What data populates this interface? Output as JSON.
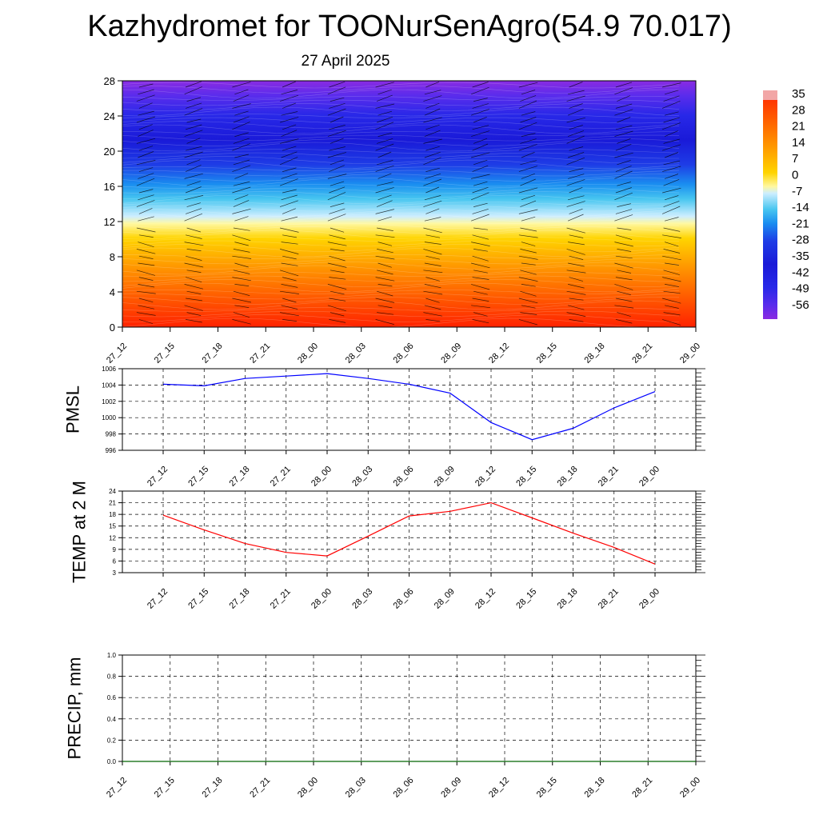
{
  "header": {
    "title": "Kazhydromet for TOONurSenAgro(54.9 70.017)",
    "date": "27 April 2025"
  },
  "chart_data": [
    {
      "type": "heatmap",
      "title": "",
      "xlabel": "",
      "ylabel": "",
      "x_tick_labels": [
        "27_12",
        "27_15",
        "27_18",
        "27_21",
        "28_00",
        "28_03",
        "28_06",
        "28_09",
        "28_12",
        "28_15",
        "28_18",
        "28_21",
        "29_00"
      ],
      "y_ticks": [
        0,
        4,
        8,
        12,
        16,
        20,
        24,
        28
      ],
      "ylim": [
        0,
        28
      ],
      "colorbar_labels": [
        "35",
        "28",
        "21",
        "14",
        "7",
        "0",
        "-7",
        "-14",
        "-21",
        "-28",
        "-35",
        "-42",
        "-49",
        "-56"
      ],
      "colorbar_range": [
        -63,
        42
      ],
      "colors": {
        "cold_top": "#8a2be2",
        "cold": "#1e1ee0",
        "mid": "#48c6f0",
        "freezing": "#fff8a0",
        "warm": "#ffb000",
        "hot": "#ff2200"
      },
      "field_description_layers_temperature": {
        "levels": [
          0,
          4,
          8,
          10,
          12,
          14,
          16,
          18,
          20,
          22,
          24,
          26,
          28
        ],
        "values_by_time": [
          [
            20,
            12,
            4,
            -2,
            -12,
            -24,
            -36,
            -46,
            -54,
            -58,
            -56,
            -52,
            -48
          ],
          [
            19,
            11,
            4,
            -3,
            -12,
            -25,
            -37,
            -47,
            -55,
            -59,
            -57,
            -52,
            -48
          ],
          [
            16,
            10,
            3,
            -3,
            -13,
            -25,
            -37,
            -47,
            -55,
            -58,
            -56,
            -51,
            -47
          ],
          [
            15,
            9,
            3,
            -3,
            -13,
            -25,
            -37,
            -47,
            -55,
            -58,
            -56,
            -51,
            -47
          ],
          [
            14,
            9,
            3,
            -3,
            -13,
            -25,
            -37,
            -47,
            -55,
            -58,
            -56,
            -51,
            -47
          ],
          [
            17,
            11,
            4,
            -2,
            -12,
            -25,
            -37,
            -47,
            -55,
            -58,
            -56,
            -51,
            -47
          ],
          [
            20,
            13,
            5,
            -2,
            -12,
            -24,
            -36,
            -47,
            -55,
            -58,
            -56,
            -51,
            -47
          ],
          [
            22,
            14,
            5,
            -1,
            -12,
            -24,
            -36,
            -47,
            -55,
            -58,
            -55,
            -51,
            -47
          ],
          [
            25,
            16,
            6,
            -1,
            -12,
            -24,
            -36,
            -47,
            -55,
            -58,
            -55,
            -51,
            -47
          ],
          [
            24,
            15,
            6,
            -1,
            -12,
            -24,
            -36,
            -47,
            -55,
            -58,
            -55,
            -51,
            -47
          ],
          [
            18,
            12,
            5,
            -1,
            -12,
            -24,
            -36,
            -47,
            -55,
            -58,
            -55,
            -51,
            -47
          ],
          [
            14,
            10,
            4,
            -1,
            -12,
            -24,
            -36,
            -47,
            -55,
            -58,
            -55,
            -51,
            -47
          ],
          [
            8,
            6,
            3,
            -1,
            -12,
            -24,
            -36,
            -47,
            -55,
            -58,
            -55,
            -51,
            -47
          ]
        ]
      }
    },
    {
      "type": "line",
      "ylabel": "PMSL",
      "categories": [
        "27_12",
        "27_15",
        "27_18",
        "27_21",
        "28_00",
        "28_03",
        "28_06",
        "28_09",
        "28_12",
        "28_15",
        "28_18",
        "28_21",
        "29_00"
      ],
      "ylim": [
        996,
        1006
      ],
      "y_ticks": [
        996,
        998,
        1000,
        1002,
        1004,
        1006
      ],
      "series": [
        {
          "color": "#0000ff",
          "values": [
            1004.1,
            1003.9,
            1004.8,
            1005.1,
            1005.4,
            1004.8,
            1004.1,
            1003.0,
            999.4,
            997.3,
            998.7,
            1001.2,
            1003.2
          ]
        }
      ]
    },
    {
      "type": "line",
      "ylabel": "TEMP at 2 M",
      "categories": [
        "27_12",
        "27_15",
        "27_18",
        "27_21",
        "28_00",
        "28_03",
        "28_06",
        "28_09",
        "28_12",
        "28_15",
        "28_18",
        "28_21",
        "29_00"
      ],
      "ylim": [
        3,
        24
      ],
      "y_ticks": [
        3,
        6,
        9,
        12,
        15,
        18,
        21,
        24
      ],
      "series": [
        {
          "color": "#ff0000",
          "values": [
            17.8,
            14.0,
            10.5,
            8.2,
            7.3,
            12.4,
            17.6,
            18.8,
            21.0,
            17.1,
            13.2,
            9.5,
            5.2
          ]
        }
      ]
    },
    {
      "type": "line",
      "ylabel": "PRECIP, mm",
      "categories": [
        "27_12",
        "27_15",
        "27_18",
        "27_21",
        "28_00",
        "28_03",
        "28_06",
        "28_09",
        "28_12",
        "28_15",
        "28_18",
        "28_21",
        "29_00"
      ],
      "ylim": [
        0,
        1
      ],
      "y_ticks": [
        0.0,
        0.2,
        0.4,
        0.6,
        0.8,
        1.0
      ],
      "y_tick_labels": [
        "0.0",
        "0.2",
        "0.4",
        "0.6",
        "0.8",
        "1.0"
      ],
      "series": [
        {
          "color": "#006400",
          "values": [
            0,
            0,
            0,
            0,
            0,
            0,
            0,
            0,
            0,
            0,
            0,
            0,
            0
          ]
        }
      ]
    }
  ]
}
